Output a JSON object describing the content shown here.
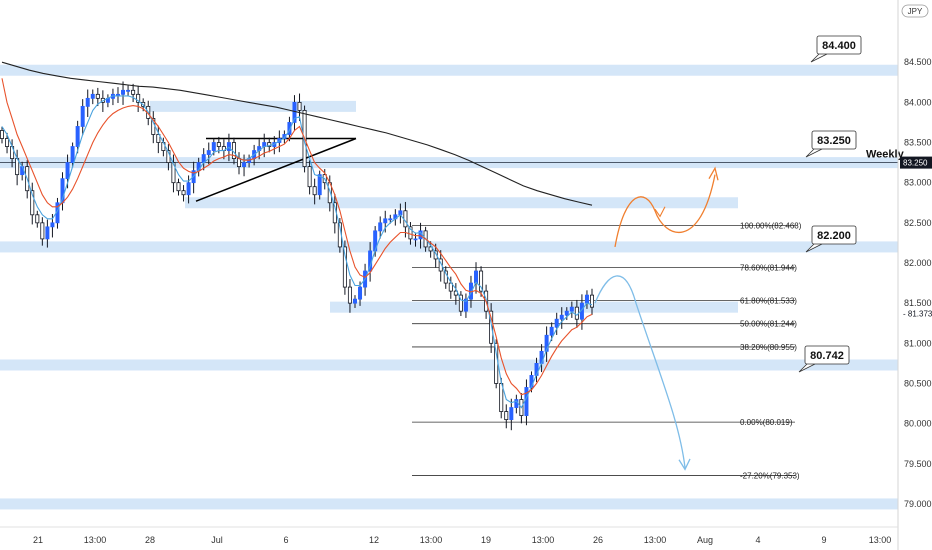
{
  "chart_data": {
    "type": "candlestick",
    "symbol_label": "JPY",
    "ylim": [
      78.8,
      85.15
    ],
    "y_ticks": [
      84.5,
      84.0,
      83.5,
      83.0,
      82.5,
      82.0,
      81.5,
      81.0,
      80.5,
      80.0,
      79.5,
      79.0
    ],
    "y_tick_labels": [
      "84.500",
      "84.000",
      "83.500",
      "83.000",
      "82.500",
      "82.000",
      "81.500",
      "81.000",
      "80.500",
      "80.000",
      "79.500",
      "79.000"
    ],
    "x_tick_labels": [
      "21",
      "13:00",
      "28",
      "Jul",
      "6",
      "12",
      "13:00",
      "19",
      "13:00",
      "26",
      "13:00",
      "Aug",
      "4",
      "9",
      "13:00"
    ],
    "price_badges": [
      {
        "label": "83.250",
        "value": 83.25,
        "bg": "#131722",
        "fg": "#ffffff"
      },
      {
        "label": "81.373",
        "value": 81.373,
        "bg": "#ffffff",
        "fg": "#131722"
      }
    ],
    "levels": [
      {
        "label": "84.400",
        "value": 84.4
      },
      {
        "label": "83.250",
        "value": 83.25,
        "note": "Weekly"
      },
      {
        "label": "82.200",
        "value": 82.2
      },
      {
        "label": "80.742",
        "value": 80.742
      }
    ],
    "fibonacci": [
      {
        "label": "100.00%(82.468)",
        "value": 82.468
      },
      {
        "label": "78.60%(81.944)",
        "value": 81.944
      },
      {
        "label": "61.80%(81.533)",
        "value": 81.533
      },
      {
        "label": "50.00%(81.244)",
        "value": 81.244
      },
      {
        "label": "38.20%(80.955)",
        "value": 80.955
      },
      {
        "label": "0.00%(80.019)",
        "value": 80.019
      },
      {
        "label": "-27.20%(79.353)",
        "value": 79.353
      }
    ],
    "zones": [
      {
        "value": 84.4
      },
      {
        "value": 83.95
      },
      {
        "value": 83.25
      },
      {
        "value": 82.75
      },
      {
        "value": 82.2
      },
      {
        "value": 81.45
      },
      {
        "value": 80.73
      },
      {
        "value": 79.0
      }
    ],
    "close_series": [
      83.55,
      83.45,
      83.3,
      83.1,
      83.2,
      82.9,
      82.6,
      82.5,
      82.3,
      82.45,
      82.5,
      82.75,
      83.05,
      83.25,
      83.45,
      83.7,
      83.95,
      84.05,
      84.1,
      84.05,
      84.0,
      84.05,
      84.1,
      84.1,
      84.15,
      84.15,
      84.1,
      84.0,
      83.95,
      83.8,
      83.6,
      83.5,
      83.4,
      83.25,
      83.0,
      82.9,
      82.85,
      83.0,
      83.15,
      83.25,
      83.35,
      83.4,
      83.5,
      83.45,
      83.4,
      83.5,
      83.3,
      83.2,
      83.25,
      83.3,
      83.4,
      83.45,
      83.5,
      83.45,
      83.5,
      83.55,
      83.6,
      83.75,
      84.0,
      83.9,
      83.2,
      82.95,
      82.85,
      83.1,
      83.0,
      82.75,
      82.5,
      82.2,
      81.7,
      81.5,
      81.55,
      81.7,
      81.9,
      82.15,
      82.4,
      82.5,
      82.55,
      82.55,
      82.6,
      82.65,
      82.45,
      82.3,
      82.3,
      82.4,
      82.2,
      82.15,
      82.05,
      81.9,
      81.75,
      81.65,
      81.6,
      81.4,
      81.55,
      81.75,
      81.9,
      81.65,
      81.4,
      81.0,
      80.5,
      80.15,
      80.05,
      80.2,
      80.3,
      80.1,
      80.45,
      80.6,
      80.75,
      80.9,
      81.1,
      81.2,
      81.3,
      81.35,
      81.4,
      81.45,
      81.3,
      81.5,
      81.6,
      81.45
    ],
    "ema_fast": [
      83.7,
      83.6,
      83.45,
      83.3,
      83.2,
      83.05,
      82.85,
      82.7,
      82.6,
      82.55,
      82.55,
      82.65,
      82.8,
      83.0,
      83.2,
      83.4,
      83.6,
      83.75,
      83.9,
      83.98,
      84.02,
      84.05,
      84.08,
      84.08,
      84.08,
      84.08,
      84.06,
      84.02,
      83.97,
      83.88,
      83.75,
      83.62,
      83.5,
      83.38,
      83.23,
      83.1,
      83.02,
      83.02,
      83.08,
      83.16,
      83.25,
      83.3,
      83.38,
      83.4,
      83.4,
      83.44,
      83.38,
      83.3,
      83.28,
      83.3,
      83.35,
      83.4,
      83.45,
      83.46,
      83.48,
      83.52,
      83.56,
      83.65,
      83.8,
      83.82,
      83.5,
      83.3,
      83.1,
      83.08,
      83.05,
      82.9,
      82.7,
      82.45,
      82.1,
      81.85,
      81.72,
      81.72,
      81.8,
      81.96,
      82.16,
      82.32,
      82.44,
      82.5,
      82.55,
      82.6,
      82.52,
      82.42,
      82.37,
      82.38,
      82.3,
      82.22,
      82.12,
      82.0,
      81.87,
      81.76,
      81.68,
      81.54,
      81.52,
      81.63,
      81.76,
      81.7,
      81.55,
      81.25,
      80.88,
      80.52,
      80.3,
      80.26,
      80.28,
      80.2,
      80.32,
      80.46,
      80.61,
      80.75,
      80.92,
      81.06,
      81.18,
      81.27,
      81.33,
      81.39,
      81.35,
      81.42,
      81.5,
      81.48
    ],
    "ema_slow": [
      84.3,
      84.0,
      83.8,
      83.6,
      83.45,
      83.3,
      83.15,
      83.0,
      82.85,
      82.75,
      82.7,
      82.7,
      82.75,
      82.82,
      82.92,
      83.05,
      83.2,
      83.35,
      83.5,
      83.62,
      83.72,
      83.8,
      83.86,
      83.9,
      83.93,
      83.95,
      83.96,
      83.95,
      83.92,
      83.86,
      83.78,
      83.7,
      83.6,
      83.5,
      83.38,
      83.26,
      83.18,
      83.14,
      83.12,
      83.14,
      83.18,
      83.22,
      83.27,
      83.3,
      83.32,
      83.35,
      83.34,
      83.3,
      83.28,
      83.28,
      83.3,
      83.33,
      83.37,
      83.39,
      83.42,
      83.45,
      83.48,
      83.55,
      83.65,
      83.7,
      83.55,
      83.4,
      83.25,
      83.18,
      83.12,
      83.0,
      82.85,
      82.65,
      82.4,
      82.15,
      81.95,
      81.85,
      81.82,
      81.88,
      81.98,
      82.08,
      82.18,
      82.26,
      82.32,
      82.38,
      82.38,
      82.36,
      82.34,
      82.34,
      82.3,
      82.25,
      82.2,
      82.12,
      82.03,
      81.94,
      81.86,
      81.74,
      81.66,
      81.64,
      81.66,
      81.62,
      81.52,
      81.32,
      81.08,
      80.82,
      80.62,
      80.5,
      80.44,
      80.36,
      80.38,
      80.42,
      80.5,
      80.6,
      80.72,
      80.84,
      80.94,
      81.03,
      81.1,
      81.17,
      81.2,
      81.26,
      81.33,
      81.36
    ],
    "sma_long": [
      84.5,
      84.45,
      84.4,
      84.36,
      84.33,
      84.3,
      84.28,
      84.26,
      84.24,
      84.22,
      84.2,
      84.19,
      84.17,
      84.15,
      84.12,
      84.09,
      84.06,
      84.03,
      84.0,
      83.97,
      83.94,
      83.9,
      83.86,
      83.82,
      83.78,
      83.74,
      83.7,
      83.66,
      83.62,
      83.57,
      83.52,
      83.47,
      83.41,
      83.35,
      83.28,
      83.2,
      83.12,
      83.04,
      82.96,
      82.9,
      82.85,
      82.8,
      82.76,
      82.72
    ],
    "projections": [
      {
        "name": "bullish",
        "color": "#f07f2f"
      },
      {
        "name": "bearish",
        "color": "#7fbde8"
      }
    ]
  }
}
